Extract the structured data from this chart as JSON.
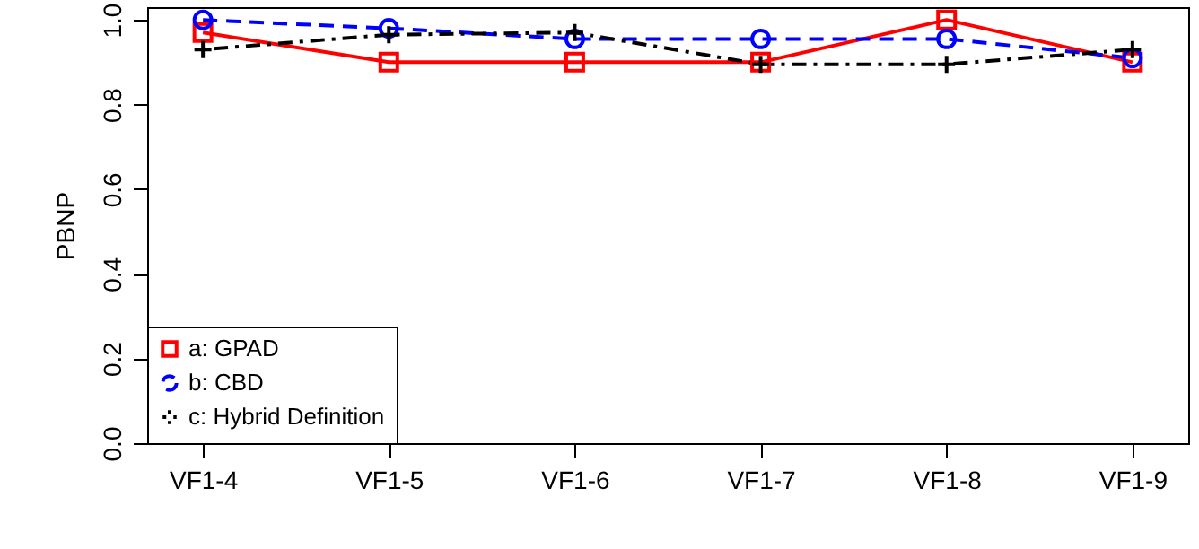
{
  "chart_data": {
    "type": "line",
    "ylabel": "PBNP",
    "categories": [
      "VF1-4",
      "VF1-5",
      "VF1-6",
      "VF1-7",
      "VF1-8",
      "VF1-9"
    ],
    "ylim": [
      0,
      1.03
    ],
    "yticks": [
      {
        "value": 0,
        "label": "0.0"
      },
      {
        "value": 0.2,
        "label": "0.2"
      },
      {
        "value": 0.4,
        "label": "0.4"
      },
      {
        "value": 0.6,
        "label": "0.6"
      },
      {
        "value": 0.8,
        "label": "0.8"
      },
      {
        "value": 1,
        "label": "1.0"
      }
    ],
    "grid": false,
    "legend": "bottom left",
    "series": [
      {
        "name": "a: GPAD",
        "color": "#ff0000",
        "marker": "square",
        "line_style": "solid",
        "values": [
          0.97,
          0.9,
          0.9,
          0.9,
          1.0,
          0.9
        ]
      },
      {
        "name": "b: CBD",
        "color": "#0000ff",
        "marker": "circle",
        "line_style": "dashed",
        "values": [
          1.0,
          0.98,
          0.955,
          0.955,
          0.955,
          0.91
        ]
      },
      {
        "name": "c: Hybrid Definition",
        "color": "#000000",
        "marker": "cross",
        "line_style": "dashdot",
        "values": [
          0.93,
          0.965,
          0.97,
          0.895,
          0.895,
          0.93
        ]
      }
    ]
  }
}
